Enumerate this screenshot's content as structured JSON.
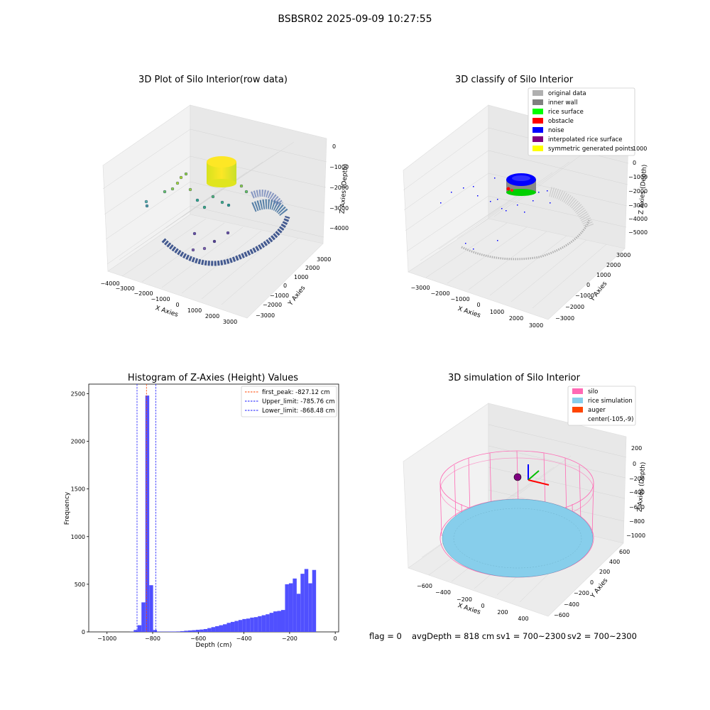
{
  "figure": {
    "title": "BSBSR02 2025-09-09 10:27:55"
  },
  "status": {
    "flag": "flag = 0",
    "avg_depth": "avgDepth = 818 cm",
    "sv1": "sv1 = 700~2300",
    "sv2": "sv2 = 700~2300"
  },
  "colors": {
    "histogram_bar": "#5050ff",
    "first_peak_line": "#ff4500",
    "limit_lines": "#1a1aff",
    "silo_wireframe": "#ff69b4",
    "rice_simulation": "#87ceeb",
    "auger": "#ff4500"
  },
  "chart_data": [
    {
      "type": "scatter",
      "subtype": "3d",
      "title": "3D Plot of Silo Interior(row data)",
      "xlabel": "X Axies",
      "ylabel": "Y Axies",
      "zlabel": "Z Axies (Depth)",
      "x_ticks": [
        "−4000",
        "−3000",
        "−2000",
        "−1000",
        "0",
        "1000",
        "2000",
        "3000"
      ],
      "y_ticks": [
        "3000",
        "2000",
        "1000",
        "0",
        "−1000",
        "−2000",
        "−3000"
      ],
      "z_ticks": [
        "0",
        "−1000",
        "−2000",
        "−3000",
        "−4000"
      ],
      "colormap": "viridis",
      "grid": true
    },
    {
      "type": "scatter",
      "subtype": "3d",
      "title": "3D classify of Silo Interior",
      "xlabel": "X Axies",
      "ylabel": "Y Axies",
      "zlabel": "Z Axies (Depth)",
      "x_ticks": [
        "−3000",
        "−2000",
        "−1000",
        "0",
        "1000",
        "2000",
        "3000"
      ],
      "y_ticks": [
        "3000",
        "2000",
        "1000",
        "0",
        "−1000",
        "−2000",
        "−3000"
      ],
      "z_ticks": [
        "1000",
        "0",
        "−1000",
        "−2000",
        "−3000",
        "−4000",
        "−5000"
      ],
      "legend_position": "top-right",
      "legend": [
        {
          "label": "original data",
          "color": "#b0b0b0"
        },
        {
          "label": "inner wall",
          "color": "#808080"
        },
        {
          "label": "rice surface",
          "color": "#00ff00"
        },
        {
          "label": "obstacle",
          "color": "#ff0000"
        },
        {
          "label": "noise",
          "color": "#0000ff"
        },
        {
          "label": "interpolated rice surface",
          "color": "#800080"
        },
        {
          "label": "symmetric generated points",
          "color": "#ffff00"
        }
      ],
      "grid": true
    },
    {
      "type": "bar",
      "subtype": "histogram",
      "title": "Histogram of Z-Axies (Height) Values",
      "xlabel": "Depth (cm)",
      "ylabel": "Frequency",
      "xlim": [
        -1080,
        15
      ],
      "ylim": [
        0,
        2600
      ],
      "x_ticks": [
        {
          "value": -1000,
          "label": "−1000"
        },
        {
          "value": -800,
          "label": "−800"
        },
        {
          "value": -600,
          "label": "−600"
        },
        {
          "value": -400,
          "label": "−400"
        },
        {
          "value": -200,
          "label": "−200"
        },
        {
          "value": 0,
          "label": "0"
        }
      ],
      "y_ticks": [
        {
          "value": 0,
          "label": "0"
        },
        {
          "value": 500,
          "label": "500"
        },
        {
          "value": 1000,
          "label": "1000"
        },
        {
          "value": 1500,
          "label": "1500"
        },
        {
          "value": 2000,
          "label": "2000"
        },
        {
          "value": 2500,
          "label": "2500"
        }
      ],
      "bin_width": 17,
      "bins": [
        [
          -900,
          2
        ],
        [
          -883,
          20
        ],
        [
          -866,
          70
        ],
        [
          -849,
          310
        ],
        [
          -832,
          2480
        ],
        [
          -815,
          490
        ],
        [
          -798,
          20
        ],
        [
          -781,
          4
        ],
        [
          -764,
          3
        ],
        [
          -747,
          3
        ],
        [
          -730,
          4
        ],
        [
          -713,
          4
        ],
        [
          -696,
          5
        ],
        [
          -679,
          8
        ],
        [
          -662,
          12
        ],
        [
          -645,
          15
        ],
        [
          -628,
          18
        ],
        [
          -611,
          22
        ],
        [
          -594,
          25
        ],
        [
          -577,
          30
        ],
        [
          -560,
          40
        ],
        [
          -543,
          50
        ],
        [
          -526,
          60
        ],
        [
          -509,
          70
        ],
        [
          -492,
          80
        ],
        [
          -475,
          95
        ],
        [
          -458,
          105
        ],
        [
          -441,
          115
        ],
        [
          -424,
          125
        ],
        [
          -407,
          135
        ],
        [
          -390,
          140
        ],
        [
          -373,
          150
        ],
        [
          -356,
          155
        ],
        [
          -339,
          165
        ],
        [
          -322,
          175
        ],
        [
          -305,
          185
        ],
        [
          -288,
          200
        ],
        [
          -271,
          215
        ],
        [
          -254,
          220
        ],
        [
          -237,
          230
        ],
        [
          -220,
          500
        ],
        [
          -203,
          510
        ],
        [
          -186,
          560
        ],
        [
          -169,
          400
        ],
        [
          -152,
          610
        ],
        [
          -135,
          660
        ],
        [
          -118,
          510
        ],
        [
          -101,
          650
        ]
      ],
      "legend_position": "top-right",
      "reference_lines": [
        {
          "label": "first_peak: -827.12 cm",
          "value": -827.12,
          "style": "dashed",
          "color": "#ff4500"
        },
        {
          "label": "Upper_limit: -785.76 cm",
          "value": -785.76,
          "style": "dashed",
          "color": "#1a1aff"
        },
        {
          "label": "Lower_limit: -868.48 cm",
          "value": -868.48,
          "style": "dashed",
          "color": "#1a1aff"
        }
      ]
    },
    {
      "type": "scatter",
      "subtype": "3d-surface",
      "title": "3D simulation of Silo Interior",
      "xlabel": "X Axies",
      "ylabel": "Y Axies",
      "zlabel": "Z Axies (Depth)",
      "x_ticks": [
        "−600",
        "−400",
        "−200",
        "0",
        "200",
        "400"
      ],
      "y_ticks": [
        "600",
        "400",
        "200",
        "0",
        "−200",
        "−400",
        "−600"
      ],
      "z_ticks": [
        "200",
        "0",
        "−200",
        "−400",
        "−600",
        "−800",
        "−1000"
      ],
      "legend_position": "top-right",
      "legend": [
        {
          "label": "silo",
          "color": "#ff69b4"
        },
        {
          "label": "rice simulation",
          "color": "#87ceeb"
        },
        {
          "label": "auger",
          "color": "#ff4500"
        },
        {
          "label": "center(-105,-9)",
          "color": ""
        }
      ],
      "grid": true
    }
  ]
}
